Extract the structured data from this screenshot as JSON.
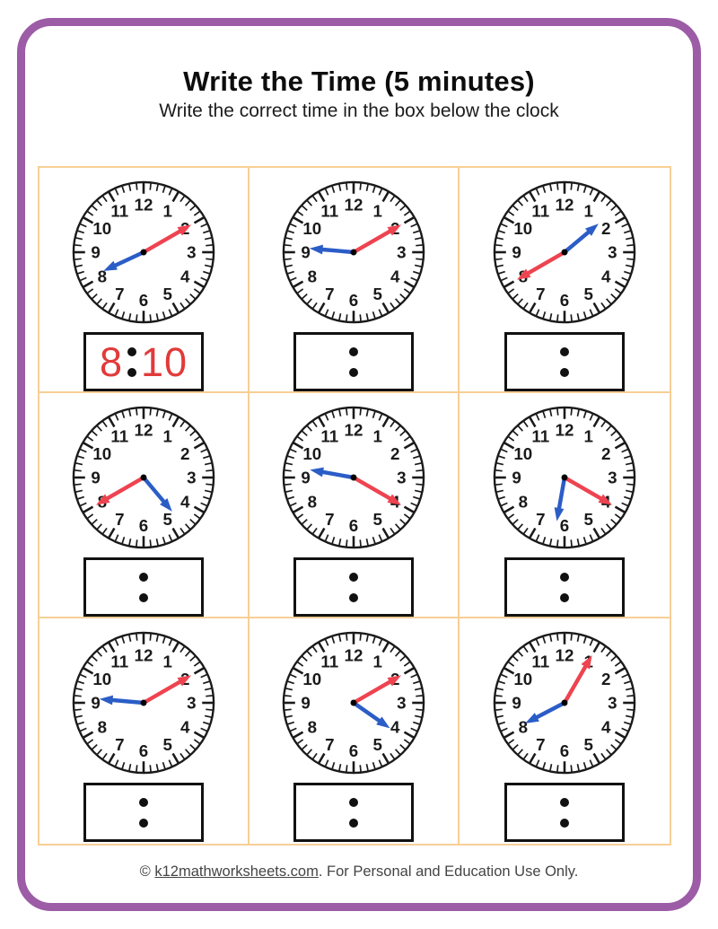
{
  "page": {
    "title": "Write the Time (5 minutes)",
    "subtitle": "Write the correct time in the box below the clock",
    "footer": {
      "prefix": "© ",
      "link": "k12mathworksheets.com",
      "suffix": ". For Personal and Education Use Only."
    }
  },
  "colors": {
    "border_purple": "#9c5ca6",
    "grid_orange": "#f8cf96",
    "minute_hand_red": "#ee4350",
    "hour_hand_blue": "#2b5dc7",
    "answer_red": "#e23a3a",
    "clock_ink": "#1a1a1a"
  },
  "dial_numbers": [
    1,
    2,
    3,
    4,
    5,
    6,
    7,
    8,
    9,
    10,
    11,
    12
  ],
  "clocks": [
    {
      "hour": 8,
      "minute": 10,
      "answer_hour": "8",
      "answer_minute": "10"
    },
    {
      "hour": 9,
      "minute": 10,
      "answer_hour": "",
      "answer_minute": ""
    },
    {
      "hour": 1,
      "minute": 40,
      "answer_hour": "",
      "answer_minute": ""
    },
    {
      "hour": 4,
      "minute": 40,
      "answer_hour": "",
      "answer_minute": ""
    },
    {
      "hour": 9,
      "minute": 20,
      "answer_hour": "",
      "answer_minute": ""
    },
    {
      "hour": 6,
      "minute": 20,
      "answer_hour": "",
      "answer_minute": ""
    },
    {
      "hour": 9,
      "minute": 10,
      "answer_hour": "",
      "answer_minute": ""
    },
    {
      "hour": 4,
      "minute": 10,
      "answer_hour": "",
      "answer_minute": ""
    },
    {
      "hour": 8,
      "minute": 5,
      "answer_hour": "",
      "answer_minute": ""
    }
  ]
}
